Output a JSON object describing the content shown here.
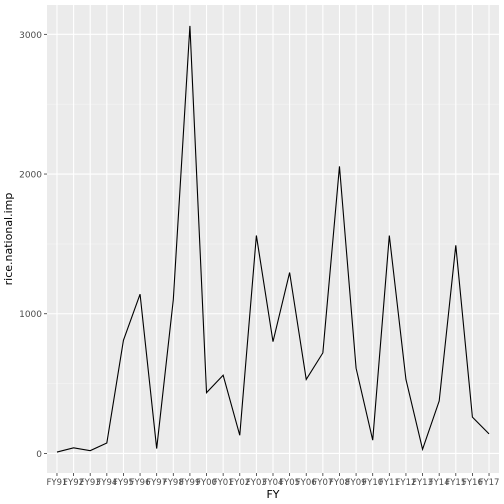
{
  "chart_data": {
    "type": "line",
    "title": "",
    "xlabel": "FY",
    "ylabel": "rice.national.imp",
    "categories": [
      "FY91",
      "FY92",
      "FY93",
      "FY94",
      "FY95",
      "FY96",
      "FY97",
      "FY98",
      "FY99",
      "FY00",
      "FY01",
      "FY02",
      "FY03",
      "FY04",
      "FY05",
      "FY06",
      "FY07",
      "FY08",
      "FY09",
      "FY10",
      "FY11",
      "FY12",
      "FY13",
      "FY14",
      "FY15",
      "FY16",
      "FY17"
    ],
    "series": [
      {
        "values": [
          10,
          40,
          20,
          75,
          810,
          1140,
          35,
          1100,
          3060,
          435,
          560,
          130,
          1560,
          800,
          1295,
          530,
          720,
          2055,
          610,
          95,
          1560,
          530,
          30,
          375,
          1490,
          260,
          140
        ]
      }
    ],
    "ylim": [
      -140,
      3210
    ],
    "yticks": [
      0,
      1000,
      2000,
      3000
    ],
    "ytick_labels": [
      "0",
      "1000",
      "2000",
      "3000"
    ],
    "grid": true,
    "legend": "none",
    "colors": {
      "panel": "#ebebeb",
      "grid_major": "#ffffff",
      "grid_minor": "#f5f5f5",
      "line": "#000000",
      "tick_text": "#4d4d4d",
      "axis_title": "#000000"
    }
  }
}
